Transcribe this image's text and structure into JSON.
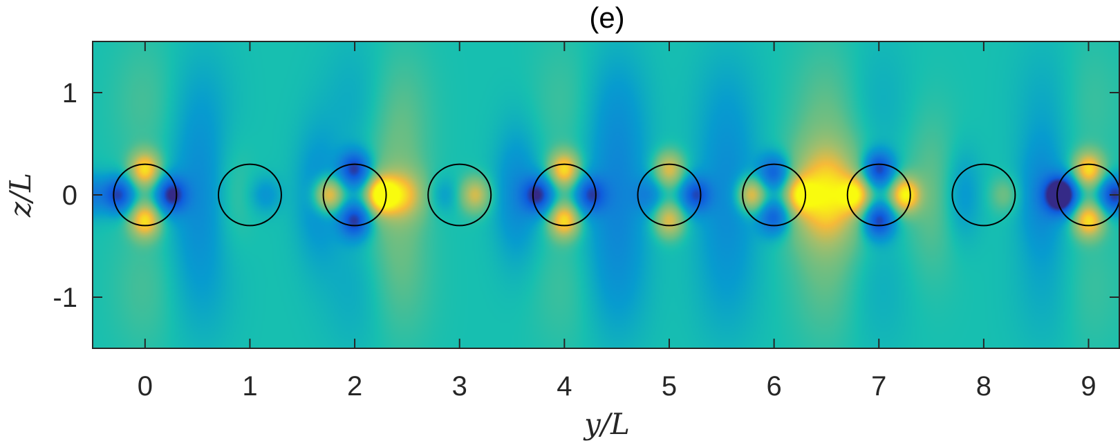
{
  "chart_data": {
    "type": "heatmap",
    "title": "(e)",
    "xlabel": "y/L",
    "ylabel": "z/L",
    "xlim": [
      -0.5,
      9.3
    ],
    "ylim": [
      -1.5,
      1.5
    ],
    "x_ticks": [
      0,
      1,
      2,
      3,
      4,
      5,
      6,
      7,
      8,
      9
    ],
    "x_tick_labels": [
      "0",
      "1",
      "2",
      "3",
      "4",
      "5",
      "6",
      "7",
      "8",
      "9"
    ],
    "y_ticks": [
      1,
      0,
      -1
    ],
    "y_tick_labels": [
      "1",
      "0",
      "-1"
    ],
    "colormap": "parula",
    "background_color": "#17bfb0",
    "circles": {
      "centers_y": [
        0,
        1,
        2,
        3,
        4,
        5,
        6,
        7,
        8,
        9
      ],
      "center_z": 0,
      "radius": 0.3,
      "stroke": "#000000"
    },
    "field_blobs": [
      {
        "y": 0.0,
        "z": 0.25,
        "sy": 0.1,
        "sz": 0.12,
        "v": 0.85
      },
      {
        "y": 0.0,
        "z": -0.25,
        "sy": 0.1,
        "sz": 0.12,
        "v": 0.85
      },
      {
        "y": -0.25,
        "z": 0.0,
        "sy": 0.1,
        "sz": 0.12,
        "v": -0.85
      },
      {
        "y": 0.25,
        "z": 0.0,
        "sy": 0.1,
        "sz": 0.12,
        "v": -0.95
      },
      {
        "y": -0.55,
        "z": 0.0,
        "sy": 0.14,
        "sz": 0.14,
        "v": -0.5
      },
      {
        "y": 0.5,
        "z": 0.0,
        "sy": 0.18,
        "sz": 0.55,
        "v": -0.3
      },
      {
        "y": 1.15,
        "z": 0.0,
        "sy": 0.1,
        "sz": 0.12,
        "v": -0.25
      },
      {
        "y": 0.85,
        "z": 0.0,
        "sy": 0.12,
        "sz": 0.35,
        "v": 0.1
      },
      {
        "y": 1.65,
        "z": 0.0,
        "sy": 0.15,
        "sz": 0.45,
        "v": -0.3
      },
      {
        "y": 2.0,
        "z": 0.25,
        "sy": 0.1,
        "sz": 0.12,
        "v": -0.9
      },
      {
        "y": 2.0,
        "z": -0.25,
        "sy": 0.1,
        "sz": 0.12,
        "v": -0.9
      },
      {
        "y": 1.75,
        "z": 0.0,
        "sy": 0.1,
        "sz": 0.12,
        "v": 0.9
      },
      {
        "y": 2.25,
        "z": 0.0,
        "sy": 0.1,
        "sz": 0.12,
        "v": 0.95
      },
      {
        "y": 2.45,
        "z": 0.0,
        "sy": 0.15,
        "sz": 0.16,
        "v": 0.55
      },
      {
        "y": 2.4,
        "z": 0.0,
        "sy": 0.2,
        "sz": 0.6,
        "v": 0.25
      },
      {
        "y": 3.15,
        "z": 0.0,
        "sy": 0.1,
        "sz": 0.12,
        "v": 0.6
      },
      {
        "y": 2.85,
        "z": 0.0,
        "sy": 0.1,
        "sz": 0.12,
        "v": -0.2
      },
      {
        "y": 3.55,
        "z": 0.0,
        "sy": 0.15,
        "sz": 0.45,
        "v": -0.35
      },
      {
        "y": 4.0,
        "z": 0.25,
        "sy": 0.1,
        "sz": 0.12,
        "v": 0.85
      },
      {
        "y": 4.0,
        "z": -0.25,
        "sy": 0.1,
        "sz": 0.12,
        "v": 0.85
      },
      {
        "y": 3.75,
        "z": 0.0,
        "sy": 0.1,
        "sz": 0.12,
        "v": -0.9
      },
      {
        "y": 4.25,
        "z": 0.0,
        "sy": 0.1,
        "sz": 0.12,
        "v": -0.75
      },
      {
        "y": 4.5,
        "z": 0.0,
        "sy": 0.2,
        "sz": 0.6,
        "v": -0.35
      },
      {
        "y": 5.0,
        "z": 0.25,
        "sy": 0.1,
        "sz": 0.12,
        "v": 0.65
      },
      {
        "y": 5.0,
        "z": -0.25,
        "sy": 0.1,
        "sz": 0.12,
        "v": 0.65
      },
      {
        "y": 4.8,
        "z": 0.0,
        "sy": 0.1,
        "sz": 0.12,
        "v": -0.3
      },
      {
        "y": 5.25,
        "z": 0.0,
        "sy": 0.1,
        "sz": 0.12,
        "v": -0.75
      },
      {
        "y": 5.55,
        "z": 0.0,
        "sy": 0.2,
        "sz": 0.55,
        "v": -0.3
      },
      {
        "y": 6.0,
        "z": 0.22,
        "sy": 0.1,
        "sz": 0.12,
        "v": -0.7
      },
      {
        "y": 6.0,
        "z": -0.22,
        "sy": 0.1,
        "sz": 0.12,
        "v": -0.7
      },
      {
        "y": 5.78,
        "z": 0.0,
        "sy": 0.1,
        "sz": 0.12,
        "v": 0.8
      },
      {
        "y": 6.25,
        "z": 0.0,
        "sy": 0.1,
        "sz": 0.12,
        "v": 0.6
      },
      {
        "y": 6.5,
        "z": 0.0,
        "sy": 0.22,
        "sz": 0.32,
        "v": 0.75
      },
      {
        "y": 6.5,
        "z": 0.0,
        "sy": 0.25,
        "sz": 0.7,
        "v": 0.2
      },
      {
        "y": 7.0,
        "z": 0.25,
        "sy": 0.1,
        "sz": 0.12,
        "v": -0.9
      },
      {
        "y": 7.0,
        "z": -0.25,
        "sy": 0.1,
        "sz": 0.12,
        "v": -0.9
      },
      {
        "y": 6.78,
        "z": 0.0,
        "sy": 0.1,
        "sz": 0.12,
        "v": 0.65
      },
      {
        "y": 7.25,
        "z": 0.0,
        "sy": 0.1,
        "sz": 0.12,
        "v": 0.95
      },
      {
        "y": 7.5,
        "z": 0.0,
        "sy": 0.18,
        "sz": 0.55,
        "v": 0.2
      },
      {
        "y": 8.2,
        "z": 0.0,
        "sy": 0.1,
        "sz": 0.12,
        "v": 0.25
      },
      {
        "y": 7.8,
        "z": 0.0,
        "sy": 0.12,
        "sz": 0.3,
        "v": -0.25
      },
      {
        "y": 8.55,
        "z": 0.0,
        "sy": 0.15,
        "sz": 0.4,
        "v": -0.35
      },
      {
        "y": 8.72,
        "z": 0.0,
        "sy": 0.1,
        "sz": 0.12,
        "v": -0.65
      },
      {
        "y": 9.0,
        "z": 0.25,
        "sy": 0.1,
        "sz": 0.12,
        "v": 0.85
      },
      {
        "y": 9.0,
        "z": -0.25,
        "sy": 0.1,
        "sz": 0.12,
        "v": 0.85
      },
      {
        "y": 8.75,
        "z": 0.0,
        "sy": 0.1,
        "sz": 0.12,
        "v": -0.85
      },
      {
        "y": 9.25,
        "z": 0.0,
        "sy": 0.1,
        "sz": 0.12,
        "v": -0.95
      },
      {
        "y": 0.0,
        "z": 0.9,
        "sy": 0.22,
        "sz": 0.45,
        "v": 0.12
      },
      {
        "y": 0.0,
        "z": -0.9,
        "sy": 0.22,
        "sz": 0.45,
        "v": 0.12
      },
      {
        "y": 0.55,
        "z": 0.9,
        "sy": 0.22,
        "sz": 0.45,
        "v": -0.12
      },
      {
        "y": 0.55,
        "z": -0.9,
        "sy": 0.22,
        "sz": 0.45,
        "v": -0.12
      },
      {
        "y": 2.0,
        "z": 0.9,
        "sy": 0.22,
        "sz": 0.45,
        "v": -0.12
      },
      {
        "y": 2.0,
        "z": -0.9,
        "sy": 0.22,
        "sz": 0.45,
        "v": -0.12
      },
      {
        "y": 2.45,
        "z": 0.9,
        "sy": 0.22,
        "sz": 0.45,
        "v": 0.1
      },
      {
        "y": 2.45,
        "z": -0.9,
        "sy": 0.22,
        "sz": 0.45,
        "v": 0.1
      },
      {
        "y": 4.0,
        "z": 0.9,
        "sy": 0.22,
        "sz": 0.45,
        "v": 0.1
      },
      {
        "y": 4.0,
        "z": -0.9,
        "sy": 0.22,
        "sz": 0.45,
        "v": 0.1
      },
      {
        "y": 4.5,
        "z": 0.9,
        "sy": 0.22,
        "sz": 0.45,
        "v": -0.15
      },
      {
        "y": 4.5,
        "z": -0.9,
        "sy": 0.22,
        "sz": 0.45,
        "v": -0.15
      },
      {
        "y": 5.55,
        "z": 0.9,
        "sy": 0.22,
        "sz": 0.45,
        "v": -0.12
      },
      {
        "y": 5.55,
        "z": -0.9,
        "sy": 0.22,
        "sz": 0.45,
        "v": -0.12
      },
      {
        "y": 6.5,
        "z": 0.9,
        "sy": 0.22,
        "sz": 0.45,
        "v": 0.1
      },
      {
        "y": 6.5,
        "z": -0.9,
        "sy": 0.22,
        "sz": 0.45,
        "v": 0.1
      },
      {
        "y": 7.0,
        "z": 0.9,
        "sy": 0.22,
        "sz": 0.45,
        "v": -0.1
      },
      {
        "y": 7.0,
        "z": -0.9,
        "sy": 0.22,
        "sz": 0.45,
        "v": -0.1
      },
      {
        "y": 8.6,
        "z": 0.9,
        "sy": 0.22,
        "sz": 0.45,
        "v": -0.12
      },
      {
        "y": 8.6,
        "z": -0.9,
        "sy": 0.22,
        "sz": 0.45,
        "v": -0.12
      },
      {
        "y": 9.0,
        "z": 0.9,
        "sy": 0.22,
        "sz": 0.45,
        "v": 0.1
      },
      {
        "y": 9.0,
        "z": -0.9,
        "sy": 0.22,
        "sz": 0.45,
        "v": 0.1
      }
    ]
  }
}
